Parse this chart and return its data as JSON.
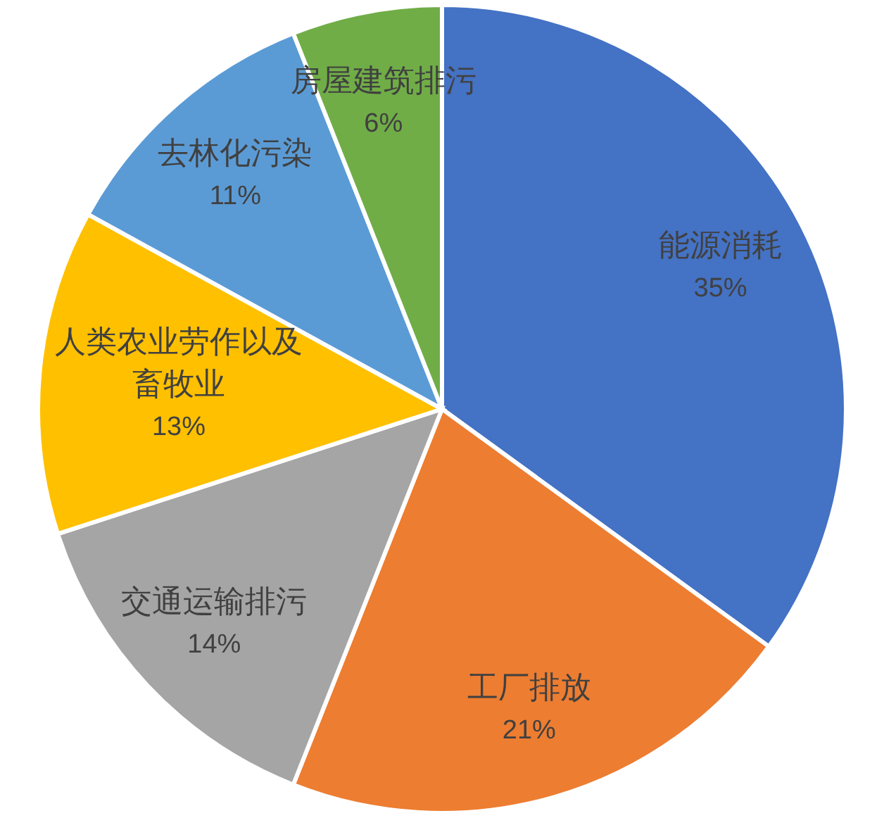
{
  "chart_data": {
    "type": "pie",
    "categories": [
      "能源消耗",
      "工厂排放",
      "交通运输排污",
      "人类农业劳作以及畜牧业",
      "去林化污染",
      "房屋建筑排污"
    ],
    "values": [
      35,
      21,
      14,
      13,
      11,
      6
    ],
    "value_labels": [
      "35%",
      "21%",
      "14%",
      "13%",
      "11%",
      "6%"
    ],
    "colors": [
      "#4472c4",
      "#ed7d31",
      "#a5a5a5",
      "#ffc000",
      "#5b9bd5",
      "#70ad47"
    ]
  }
}
